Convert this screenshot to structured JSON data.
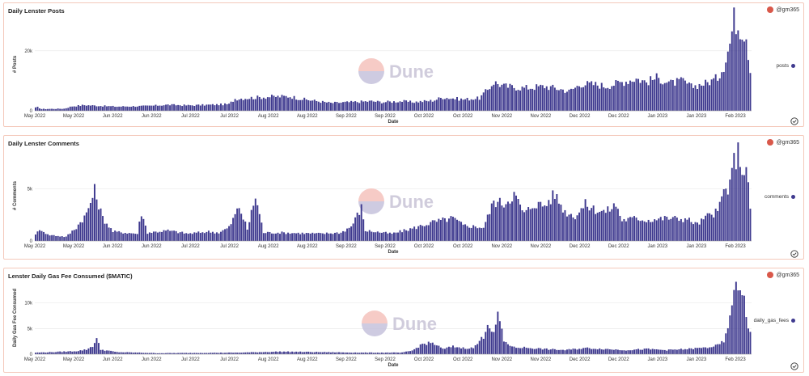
{
  "owner": "@gm365",
  "watermark": "Dune",
  "bar_color": "#3f3a8f",
  "colors": {
    "watermark_top": "#f6c6c0",
    "watermark_bottom": "#c9c6de"
  },
  "chart_data": [
    {
      "type": "bar",
      "title": "Daily Lenster Posts",
      "series_name": "posts",
      "xlabel": "Date",
      "ylabel": "# Posts",
      "yticks": [
        0,
        20000
      ],
      "ytick_labels": [
        "0",
        "20k"
      ],
      "ylim": [
        0,
        31000
      ],
      "xtick_labels": [
        "May 2022",
        "May 2022",
        "Jun 2022",
        "Jun 2022",
        "Jul 2022",
        "Jul 2022",
        "Aug 2022",
        "Aug 2022",
        "Sep 2022",
        "Sep 2022",
        "Oct 2022",
        "Oct 2022",
        "Nov 2022",
        "Nov 2022",
        "Dec 2022",
        "Dec 2022",
        "Jan 2023",
        "Jan 2023",
        "Feb 2023"
      ],
      "keypoints": [
        [
          0,
          1000
        ],
        [
          1,
          1200
        ],
        [
          3,
          600
        ],
        [
          14,
          700
        ],
        [
          18,
          1500
        ],
        [
          24,
          1900
        ],
        [
          30,
          1700
        ],
        [
          40,
          1400
        ],
        [
          55,
          1600
        ],
        [
          65,
          2000
        ],
        [
          75,
          1800
        ],
        [
          86,
          2000
        ],
        [
          95,
          2200
        ],
        [
          98,
          4000
        ],
        [
          115,
          4700
        ],
        [
          125,
          4800
        ],
        [
          130,
          4000
        ],
        [
          145,
          2600
        ],
        [
          155,
          2900
        ],
        [
          165,
          3200
        ],
        [
          170,
          2900
        ],
        [
          180,
          3200
        ],
        [
          185,
          2900
        ],
        [
          195,
          3400
        ],
        [
          200,
          4500
        ],
        [
          210,
          3800
        ],
        [
          218,
          4200
        ],
        [
          222,
          7000
        ],
        [
          225,
          9600
        ],
        [
          230,
          8200
        ],
        [
          240,
          7600
        ],
        [
          250,
          8200
        ],
        [
          258,
          7200
        ],
        [
          262,
          6500
        ],
        [
          268,
          9000
        ],
        [
          275,
          8800
        ],
        [
          280,
          8200
        ],
        [
          288,
          9600
        ],
        [
          295,
          10800
        ],
        [
          300,
          9600
        ],
        [
          305,
          11000
        ],
        [
          312,
          9200
        ],
        [
          318,
          10000
        ],
        [
          322,
          8000
        ],
        [
          330,
          9400
        ],
        [
          335,
          11000
        ],
        [
          338,
          15200
        ],
        [
          341,
          22500
        ],
        [
          343,
          30800
        ],
        [
          345,
          28500
        ],
        [
          347,
          27000
        ],
        [
          349,
          25500
        ],
        [
          351,
          13500
        ]
      ]
    },
    {
      "type": "bar",
      "title": "Daily Lenster Comments",
      "series_name": "comments",
      "xlabel": "Date",
      "ylabel": "# Comments",
      "yticks": [
        0,
        5000
      ],
      "ytick_labels": [
        "0",
        "5k"
      ],
      "ylim": [
        0,
        8700
      ],
      "xtick_labels": [
        "May 2022",
        "May 2022",
        "Jun 2022",
        "Jun 2022",
        "Jul 2022",
        "Jul 2022",
        "Aug 2022",
        "Aug 2022",
        "Sep 2022",
        "Sep 2022",
        "Oct 2022",
        "Oct 2022",
        "Nov 2022",
        "Nov 2022",
        "Dec 2022",
        "Dec 2022",
        "Jan 2023",
        "Jan 2023",
        "Feb 2023"
      ],
      "keypoints": [
        [
          0,
          700
        ],
        [
          3,
          1100
        ],
        [
          6,
          600
        ],
        [
          15,
          400
        ],
        [
          20,
          1300
        ],
        [
          25,
          2600
        ],
        [
          29,
          4800
        ],
        [
          33,
          2200
        ],
        [
          38,
          900
        ],
        [
          50,
          700
        ],
        [
          52,
          2700
        ],
        [
          55,
          800
        ],
        [
          65,
          1000
        ],
        [
          75,
          700
        ],
        [
          85,
          900
        ],
        [
          90,
          800
        ],
        [
          95,
          1300
        ],
        [
          100,
          3300
        ],
        [
          104,
          1100
        ],
        [
          108,
          4300
        ],
        [
          112,
          800
        ],
        [
          120,
          800
        ],
        [
          140,
          700
        ],
        [
          150,
          800
        ],
        [
          155,
          1400
        ],
        [
          160,
          3200
        ],
        [
          162,
          1000
        ],
        [
          175,
          700
        ],
        [
          185,
          1200
        ],
        [
          195,
          1800
        ],
        [
          205,
          2200
        ],
        [
          210,
          1500
        ],
        [
          220,
          1300
        ],
        [
          225,
          3800
        ],
        [
          230,
          3600
        ],
        [
          235,
          4500
        ],
        [
          240,
          2600
        ],
        [
          245,
          3600
        ],
        [
          250,
          3400
        ],
        [
          255,
          4500
        ],
        [
          260,
          2800
        ],
        [
          265,
          2400
        ],
        [
          270,
          3500
        ],
        [
          275,
          3000
        ],
        [
          280,
          2800
        ],
        [
          285,
          3500
        ],
        [
          288,
          2000
        ],
        [
          295,
          2200
        ],
        [
          300,
          2000
        ],
        [
          310,
          2200
        ],
        [
          320,
          2100
        ],
        [
          325,
          1600
        ],
        [
          330,
          2400
        ],
        [
          335,
          2800
        ],
        [
          338,
          4800
        ],
        [
          341,
          5200
        ],
        [
          343,
          7700
        ],
        [
          345,
          8500
        ],
        [
          347,
          7000
        ],
        [
          349,
          6700
        ],
        [
          351,
          3300
        ]
      ]
    },
    {
      "type": "bar",
      "title": "Lenster Daily Gas Fee Consumed ($MATIC)",
      "series_name": "daily_gas_fees",
      "xlabel": "Date",
      "ylabel": "Daily Gas Fee Consumed",
      "yticks": [
        0,
        5000,
        10000
      ],
      "ytick_labels": [
        "0",
        "5k",
        "10k"
      ],
      "ylim": [
        0,
        14200
      ],
      "xtick_labels": [
        "May 2022",
        "May 2022",
        "Jun 2022",
        "Jun 2022",
        "Jul 2022",
        "Jul 2022",
        "Aug 2022",
        "Aug 2022",
        "Sep 2022",
        "Sep 2022",
        "Oct 2022",
        "Oct 2022",
        "Nov 2022",
        "Nov 2022",
        "Dec 2022",
        "Dec 2022",
        "Jan 2023",
        "Jan 2023",
        "Feb 2023"
      ],
      "keypoints": [
        [
          0,
          300
        ],
        [
          8,
          400
        ],
        [
          20,
          600
        ],
        [
          25,
          900
        ],
        [
          28,
          1600
        ],
        [
          30,
          3000
        ],
        [
          32,
          900
        ],
        [
          40,
          400
        ],
        [
          60,
          200
        ],
        [
          100,
          300
        ],
        [
          120,
          500
        ],
        [
          140,
          400
        ],
        [
          160,
          300
        ],
        [
          180,
          300
        ],
        [
          185,
          700
        ],
        [
          190,
          2000
        ],
        [
          195,
          2200
        ],
        [
          200,
          1000
        ],
        [
          205,
          1500
        ],
        [
          210,
          1200
        ],
        [
          215,
          1200
        ],
        [
          218,
          2500
        ],
        [
          220,
          3500
        ],
        [
          222,
          6300
        ],
        [
          225,
          3800
        ],
        [
          227,
          8000
        ],
        [
          230,
          2500
        ],
        [
          235,
          1300
        ],
        [
          240,
          1300
        ],
        [
          250,
          1000
        ],
        [
          260,
          800
        ],
        [
          270,
          1200
        ],
        [
          280,
          1000
        ],
        [
          290,
          800
        ],
        [
          300,
          1000
        ],
        [
          310,
          800
        ],
        [
          320,
          1000
        ],
        [
          330,
          1300
        ],
        [
          335,
          1700
        ],
        [
          338,
          2500
        ],
        [
          340,
          4700
        ],
        [
          342,
          10800
        ],
        [
          344,
          12400
        ],
        [
          346,
          12800
        ],
        [
          348,
          11800
        ],
        [
          350,
          4600
        ]
      ]
    }
  ]
}
